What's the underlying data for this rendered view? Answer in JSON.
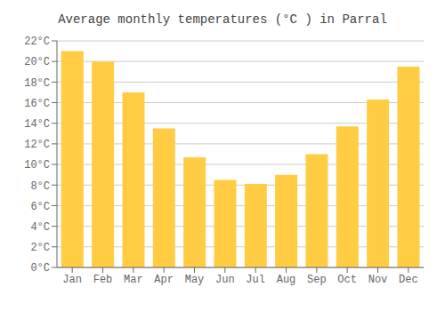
{
  "chart_data": {
    "type": "bar",
    "title": "Average monthly temperatures (°C ) in Parral",
    "categories": [
      "Jan",
      "Feb",
      "Mar",
      "Apr",
      "May",
      "Jun",
      "Jul",
      "Aug",
      "Sep",
      "Oct",
      "Nov",
      "Dec"
    ],
    "values": [
      21.0,
      20.0,
      17.0,
      13.5,
      10.7,
      8.5,
      8.1,
      9.0,
      11.0,
      13.7,
      16.3,
      19.5
    ],
    "color": "#FFCC44",
    "ylim": [
      0,
      22
    ],
    "yticks": [
      {
        "value": 0,
        "label": "0°C"
      },
      {
        "value": 2,
        "label": "2°C"
      },
      {
        "value": 4,
        "label": "4°C"
      },
      {
        "value": 6,
        "label": "6°C"
      },
      {
        "value": 8,
        "label": "8°C"
      },
      {
        "value": 10,
        "label": "10°C"
      },
      {
        "value": 12,
        "label": "12°C"
      },
      {
        "value": 14,
        "label": "14°C"
      },
      {
        "value": 16,
        "label": "16°C"
      },
      {
        "value": 18,
        "label": "18°C"
      },
      {
        "value": 20,
        "label": "20°C"
      },
      {
        "value": 22,
        "label": "22°C"
      }
    ],
    "grid": true
  }
}
